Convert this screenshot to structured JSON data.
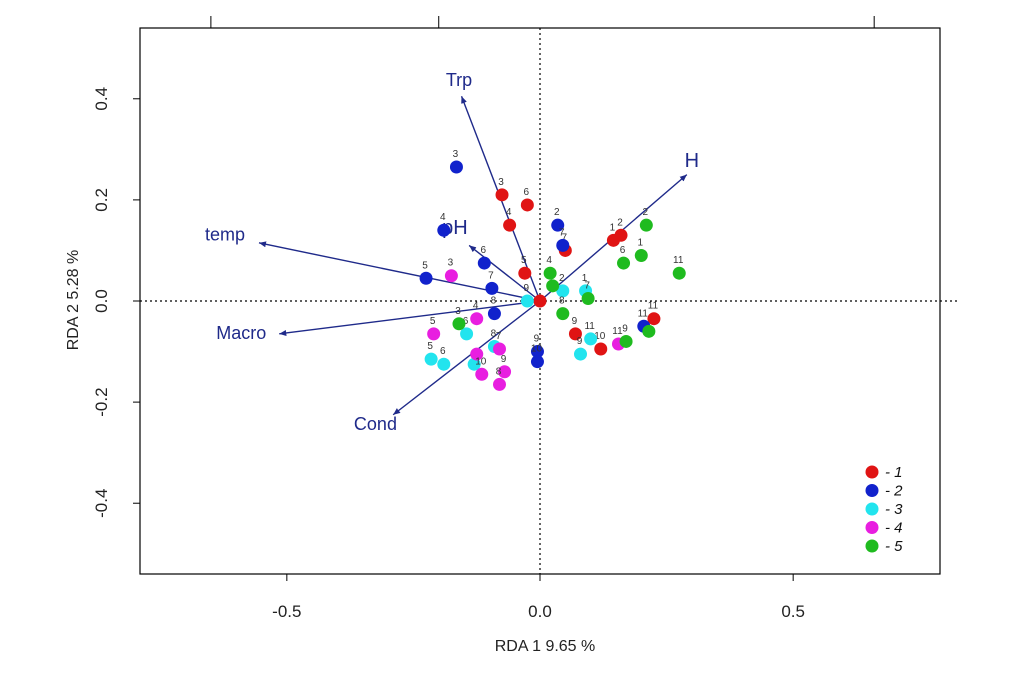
{
  "chart_data": {
    "type": "scatter",
    "title": "",
    "xlabel": "RDA 1   9.65 %",
    "ylabel": "RDA 2   5.28 %",
    "xlim": [
      -0.79,
      0.79
    ],
    "ylim": [
      -0.54,
      0.54
    ],
    "x_ticks": [
      -0.5,
      0.0,
      0.5
    ],
    "x_tick_labels": [
      "-0.5",
      "0.0",
      "0.5"
    ],
    "y_ticks": [
      -0.4,
      -0.2,
      0.0,
      0.2,
      0.4
    ],
    "y_tick_labels": [
      "-0.4",
      "-0.2",
      "0.0",
      "0.2",
      "0.4"
    ],
    "top_ticks": [
      -0.65,
      -0.2,
      0.66
    ],
    "legend_position": "bottom-right",
    "vectors": [
      {
        "name": "Trp",
        "x": -0.155,
        "y": 0.405,
        "label_x": -0.16,
        "label_y": 0.425
      },
      {
        "name": "H",
        "x": 0.29,
        "y": 0.25,
        "label_x": 0.3,
        "label_y": 0.265
      },
      {
        "name": "temp",
        "x": -0.555,
        "y": 0.115,
        "label_x": -0.622,
        "label_y": 0.12
      },
      {
        "name": "pH",
        "x": -0.14,
        "y": 0.11,
        "label_x": -0.168,
        "label_y": 0.133
      },
      {
        "name": "Macro",
        "x": -0.515,
        "y": -0.065,
        "label_x": -0.59,
        "label_y": -0.075
      },
      {
        "name": "Cond",
        "x": -0.29,
        "y": -0.225,
        "label_x": -0.325,
        "label_y": -0.255
      }
    ],
    "series": [
      {
        "name": "- 1",
        "color": "#e01414",
        "points": [
          {
            "label": "3",
            "x": -0.075,
            "y": 0.21
          },
          {
            "label": "6",
            "x": -0.025,
            "y": 0.19
          },
          {
            "label": "4",
            "x": -0.06,
            "y": 0.15
          },
          {
            "label": "5",
            "x": -0.03,
            "y": 0.055
          },
          {
            "label": "7",
            "x": 0.05,
            "y": 0.1
          },
          {
            "label": "",
            "x": 0.0,
            "y": 0.0
          },
          {
            "label": "1",
            "x": 0.145,
            "y": 0.12
          },
          {
            "label": "2",
            "x": 0.16,
            "y": 0.13
          },
          {
            "label": "9",
            "x": 0.07,
            "y": -0.065
          },
          {
            "label": "10",
            "x": 0.12,
            "y": -0.095
          },
          {
            "label": "11",
            "x": 0.225,
            "y": -0.035
          }
        ]
      },
      {
        "name": "- 2",
        "color": "#1122cc",
        "points": [
          {
            "label": "3",
            "x": -0.165,
            "y": 0.265
          },
          {
            "label": "4",
            "x": -0.19,
            "y": 0.14
          },
          {
            "label": "2",
            "x": 0.035,
            "y": 0.15
          },
          {
            "label": "7",
            "x": 0.045,
            "y": 0.11
          },
          {
            "label": "6",
            "x": -0.11,
            "y": 0.075
          },
          {
            "label": "5",
            "x": -0.225,
            "y": 0.045
          },
          {
            "label": "7",
            "x": -0.095,
            "y": 0.025
          },
          {
            "label": "8",
            "x": -0.09,
            "y": -0.025
          },
          {
            "label": "9",
            "x": -0.005,
            "y": -0.1
          },
          {
            "label": "10",
            "x": -0.005,
            "y": -0.12
          },
          {
            "label": "11",
            "x": 0.205,
            "y": -0.05
          }
        ]
      },
      {
        "name": "- 3",
        "color": "#22e4ee",
        "points": [
          {
            "label": "9",
            "x": -0.025,
            "y": 0.0
          },
          {
            "label": "2",
            "x": 0.045,
            "y": 0.02
          },
          {
            "label": "1",
            "x": 0.09,
            "y": 0.02
          },
          {
            "label": "6",
            "x": -0.145,
            "y": -0.065
          },
          {
            "label": "8",
            "x": -0.09,
            "y": -0.09
          },
          {
            "label": "5",
            "x": -0.215,
            "y": -0.115
          },
          {
            "label": "6",
            "x": -0.19,
            "y": -0.125
          },
          {
            "label": "",
            "x": -0.13,
            "y": -0.125
          },
          {
            "label": "11",
            "x": 0.1,
            "y": -0.075
          },
          {
            "label": "9",
            "x": 0.08,
            "y": -0.105
          }
        ]
      },
      {
        "name": "- 4",
        "color": "#e81ee0",
        "points": [
          {
            "label": "3",
            "x": -0.175,
            "y": 0.05
          },
          {
            "label": "4",
            "x": -0.125,
            "y": -0.035
          },
          {
            "label": "5",
            "x": -0.21,
            "y": -0.065
          },
          {
            "label": "7",
            "x": -0.08,
            "y": -0.095
          },
          {
            "label": "",
            "x": -0.125,
            "y": -0.105
          },
          {
            "label": "9",
            "x": -0.07,
            "y": -0.14
          },
          {
            "label": "10",
            "x": -0.115,
            "y": -0.145
          },
          {
            "label": "8",
            "x": -0.08,
            "y": -0.165
          },
          {
            "label": "11",
            "x": 0.155,
            "y": -0.085
          }
        ]
      },
      {
        "name": "- 5",
        "color": "#1fbb1f",
        "points": [
          {
            "label": "2",
            "x": 0.21,
            "y": 0.15
          },
          {
            "label": "1",
            "x": 0.2,
            "y": 0.09
          },
          {
            "label": "6",
            "x": 0.165,
            "y": 0.075
          },
          {
            "label": "11",
            "x": 0.275,
            "y": 0.055
          },
          {
            "label": "4",
            "x": 0.02,
            "y": 0.055
          },
          {
            "label": "",
            "x": 0.025,
            "y": 0.03
          },
          {
            "label": "7",
            "x": 0.095,
            "y": 0.005
          },
          {
            "label": "8",
            "x": 0.045,
            "y": -0.025
          },
          {
            "label": "3",
            "x": -0.16,
            "y": -0.045
          },
          {
            "label": "9",
            "x": 0.17,
            "y": -0.08
          },
          {
            "label": "",
            "x": 0.215,
            "y": -0.06
          }
        ]
      }
    ]
  }
}
